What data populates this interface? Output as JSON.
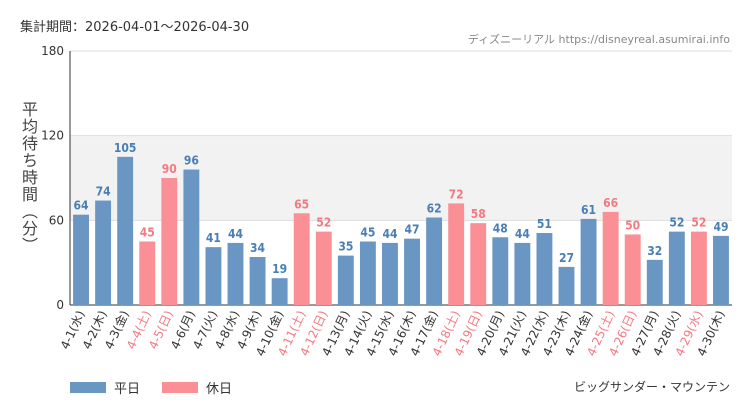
{
  "header": {
    "period": "集計期間：2026-04-01～2026-04-30",
    "credit": "ディズニーリアル https://disneyreal.asumirai.info"
  },
  "footer": {
    "attraction": "ビッグサンダー・マウンテン"
  },
  "colors": {
    "weekday": "#6a96c4",
    "holiday": "#fa8f95",
    "weekday_label": "#4a7fb5",
    "holiday_label": "#f27a82",
    "band": "#f2f2f2"
  },
  "chart_data": {
    "type": "bar",
    "ylabel": "平均待ち時間（分）",
    "ylim": [
      0,
      180
    ],
    "yticks": [
      0,
      60,
      120,
      180
    ],
    "highlight_band": [
      60,
      120
    ],
    "categories": [
      "4-1(水)",
      "4-2(木)",
      "4-3(金)",
      "4-4(土)",
      "4-5(日)",
      "4-6(月)",
      "4-7(火)",
      "4-8(水)",
      "4-9(木)",
      "4-10(金)",
      "4-11(土)",
      "4-12(日)",
      "4-13(月)",
      "4-14(火)",
      "4-15(水)",
      "4-16(木)",
      "4-17(金)",
      "4-18(土)",
      "4-19(日)",
      "4-20(月)",
      "4-21(火)",
      "4-22(水)",
      "4-23(木)",
      "4-24(金)",
      "4-25(土)",
      "4-26(日)",
      "4-27(月)",
      "4-28(火)",
      "4-29(水)",
      "4-30(木)"
    ],
    "values": [
      64,
      74,
      105,
      45,
      90,
      96,
      41,
      44,
      34,
      19,
      65,
      52,
      35,
      45,
      44,
      47,
      62,
      72,
      58,
      48,
      44,
      51,
      27,
      61,
      66,
      50,
      32,
      52,
      52,
      49
    ],
    "day_type": [
      "平日",
      "平日",
      "平日",
      "休日",
      "休日",
      "平日",
      "平日",
      "平日",
      "平日",
      "平日",
      "休日",
      "休日",
      "平日",
      "平日",
      "平日",
      "平日",
      "平日",
      "休日",
      "休日",
      "平日",
      "平日",
      "平日",
      "平日",
      "平日",
      "休日",
      "休日",
      "平日",
      "平日",
      "休日",
      "平日"
    ],
    "legend": [
      {
        "name": "平日",
        "color": "#6a96c4"
      },
      {
        "name": "休日",
        "color": "#fa8f95"
      }
    ],
    "legend_position": "bottom-left"
  }
}
